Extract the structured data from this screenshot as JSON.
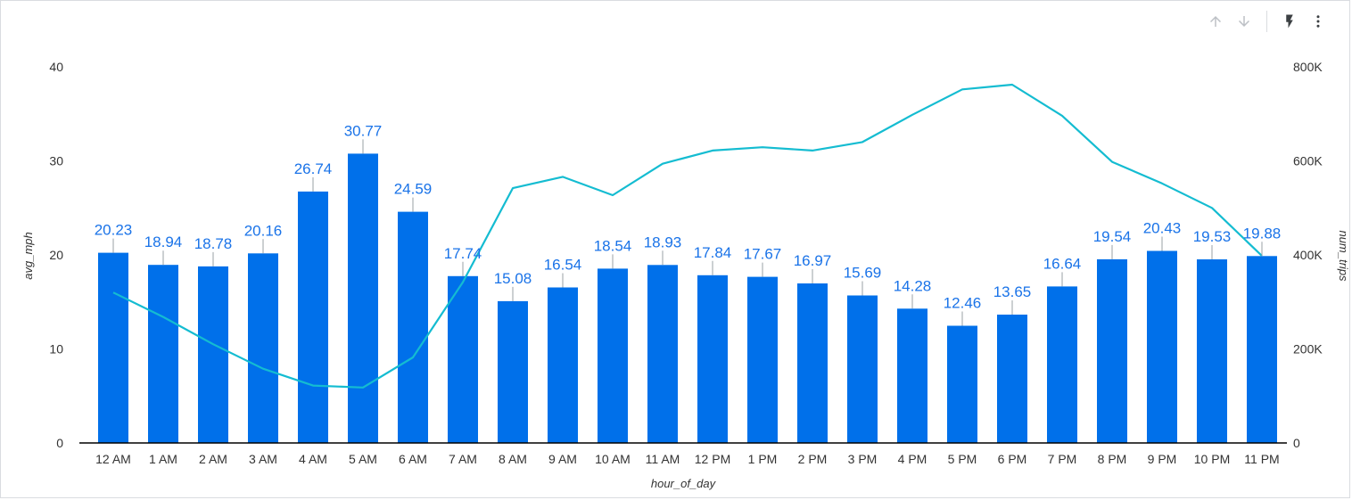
{
  "toolbar": {
    "icons": [
      "arrow-up-icon",
      "arrow-down-icon",
      "lightning-icon",
      "more-vert-icon"
    ]
  },
  "colors": {
    "bar": "#0070ea",
    "line": "#14bcd1",
    "bar_label": "#1a73e8",
    "axis_text": "#333333",
    "toolbar_icon_disabled": "#bdc1c6",
    "toolbar_icon": "#3c4043"
  },
  "chart_data": {
    "type": "bar",
    "categories": [
      "12 AM",
      "1 AM",
      "2 AM",
      "3 AM",
      "4 AM",
      "5 AM",
      "6 AM",
      "7 AM",
      "8 AM",
      "9 AM",
      "10 AM",
      "11 AM",
      "12 PM",
      "1 PM",
      "2 PM",
      "3 PM",
      "4 PM",
      "5 PM",
      "6 PM",
      "7 PM",
      "8 PM",
      "9 PM",
      "10 PM",
      "11 PM"
    ],
    "xlabel": "hour_of_day",
    "ylabel": "avg_mph",
    "y2label": "num_trips",
    "ylim": [
      0,
      40
    ],
    "y2lim": [
      0,
      800000
    ],
    "yticks": [
      "0",
      "10",
      "20",
      "30",
      "40"
    ],
    "y2ticks": [
      "0",
      "200K",
      "400K",
      "600K",
      "800K"
    ],
    "grid": false,
    "series": [
      {
        "name": "avg_mph",
        "type": "bar",
        "axis": "left",
        "values": [
          20.23,
          18.94,
          18.78,
          20.16,
          26.74,
          30.77,
          24.59,
          17.74,
          15.08,
          16.54,
          18.54,
          18.93,
          17.84,
          17.67,
          16.97,
          15.69,
          14.28,
          12.46,
          13.65,
          16.64,
          19.54,
          20.43,
          19.53,
          19.88
        ],
        "labels": [
          "20.23",
          "18.94",
          "18.78",
          "20.16",
          "26.74",
          "30.77",
          "24.59",
          "17.74",
          "15.08",
          "16.54",
          "18.54",
          "18.93",
          "17.84",
          "17.67",
          "16.97",
          "15.69",
          "14.28",
          "12.46",
          "13.65",
          "16.64",
          "19.54",
          "20.43",
          "19.53",
          "19.88"
        ]
      },
      {
        "name": "num_trips",
        "type": "line",
        "axis": "right",
        "values": [
          320000,
          268000,
          210000,
          158000,
          122000,
          118000,
          182000,
          342000,
          542000,
          566000,
          527000,
          594000,
          622000,
          629000,
          622000,
          640000,
          698000,
          752000,
          762000,
          696000,
          598000,
          552000,
          500000,
          398000
        ]
      }
    ]
  }
}
